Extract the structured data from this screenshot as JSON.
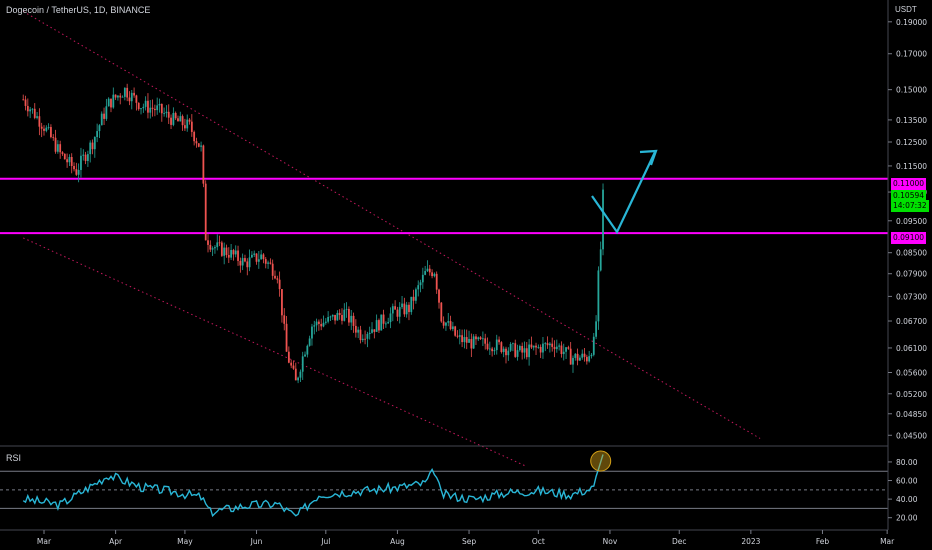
{
  "header": {
    "title": "Dogecoin / TetherUS, 1D, BINANCE",
    "currency": "USDT"
  },
  "rsi_panel": {
    "label": "RSI"
  },
  "price_tags": {
    "resistance_upper": "0.11000",
    "last_price": "0.10594",
    "countdown": "14:07:32",
    "resistance_lower": "0.09100"
  },
  "colors": {
    "background": "#000000",
    "up_candle": "#26a69a",
    "down_candle": "#ef5350",
    "level_line": "#ff00ff",
    "channel_line": "#c2185b",
    "rsi_line": "#29b6d6",
    "arrow": "#29b6d6",
    "last_price_tag": "#00e000",
    "highlight_circle": "#d4a017"
  },
  "chart_data": {
    "type": "candlestick",
    "title": "Dogecoin / TetherUS, 1D, BINANCE",
    "y_scale": "log",
    "ylim": [
      0.0435,
      0.205
    ],
    "y_ticks": [
      "0.19000",
      "0.17000",
      "0.15000",
      "0.13500",
      "0.12500",
      "0.11500",
      "0.10500",
      "0.09500",
      "0.08500",
      "0.07900",
      "0.07300",
      "0.06700",
      "0.06100",
      "0.05600",
      "0.05200",
      "0.04850",
      "0.04500"
    ],
    "x_ticks": [
      "Mar",
      "Apr",
      "May",
      "Jun",
      "Jul",
      "Aug",
      "Sep",
      "Oct",
      "Nov",
      "Dec",
      "2023",
      "Feb",
      "Mar"
    ],
    "horizontal_levels": [
      0.11,
      0.091
    ],
    "anchor_closes": [
      [
        "2022-02-20",
        0.145
      ],
      [
        "2022-03-01",
        0.132
      ],
      [
        "2022-03-08",
        0.12
      ],
      [
        "2022-03-15",
        0.113
      ],
      [
        "2022-03-22",
        0.125
      ],
      [
        "2022-03-29",
        0.143
      ],
      [
        "2022-04-05",
        0.15
      ],
      [
        "2022-04-12",
        0.142
      ],
      [
        "2022-04-19",
        0.14
      ],
      [
        "2022-04-26",
        0.135
      ],
      [
        "2022-05-03",
        0.132
      ],
      [
        "2022-05-08",
        0.122
      ],
      [
        "2022-05-10",
        0.09
      ],
      [
        "2022-05-13",
        0.087
      ],
      [
        "2022-05-20",
        0.085
      ],
      [
        "2022-05-27",
        0.082
      ],
      [
        "2022-06-03",
        0.084
      ],
      [
        "2022-06-10",
        0.079
      ],
      [
        "2022-06-14",
        0.06
      ],
      [
        "2022-06-18",
        0.054
      ],
      [
        "2022-06-25",
        0.066
      ],
      [
        "2022-07-02",
        0.067
      ],
      [
        "2022-07-09",
        0.069
      ],
      [
        "2022-07-16",
        0.064
      ],
      [
        "2022-07-23",
        0.066
      ],
      [
        "2022-07-30",
        0.069
      ],
      [
        "2022-08-06",
        0.07
      ],
      [
        "2022-08-13",
        0.079
      ],
      [
        "2022-08-17",
        0.08
      ],
      [
        "2022-08-20",
        0.068
      ],
      [
        "2022-08-27",
        0.063
      ],
      [
        "2022-09-03",
        0.062
      ],
      [
        "2022-09-10",
        0.062
      ],
      [
        "2022-09-17",
        0.061
      ],
      [
        "2022-09-24",
        0.06
      ],
      [
        "2022-10-01",
        0.061
      ],
      [
        "2022-10-08",
        0.062
      ],
      [
        "2022-10-15",
        0.059
      ],
      [
        "2022-10-22",
        0.059
      ],
      [
        "2022-10-25",
        0.062
      ],
      [
        "2022-10-26",
        0.067
      ],
      [
        "2022-10-27",
        0.078
      ],
      [
        "2022-10-28",
        0.086
      ],
      [
        "2022-10-29",
        0.1059
      ]
    ],
    "rsi": {
      "label": "RSI",
      "ylim": [
        10,
        95
      ],
      "y_ticks": [
        "80.00",
        "60.00",
        "40.00",
        "20.00"
      ],
      "bands": [
        70,
        50,
        30
      ],
      "anchor_values": [
        [
          "2022-02-20",
          40
        ],
        [
          "2022-03-08",
          34
        ],
        [
          "2022-03-22",
          55
        ],
        [
          "2022-03-29",
          66
        ],
        [
          "2022-04-12",
          53
        ],
        [
          "2022-04-26",
          48
        ],
        [
          "2022-05-08",
          42
        ],
        [
          "2022-05-12",
          26
        ],
        [
          "2022-05-27",
          33
        ],
        [
          "2022-06-10",
          35
        ],
        [
          "2022-06-18",
          21
        ],
        [
          "2022-06-28",
          45
        ],
        [
          "2022-07-16",
          49
        ],
        [
          "2022-07-30",
          52
        ],
        [
          "2022-08-13",
          57
        ],
        [
          "2022-08-17",
          71
        ],
        [
          "2022-08-20",
          45
        ],
        [
          "2022-09-03",
          40
        ],
        [
          "2022-09-17",
          47
        ],
        [
          "2022-10-01",
          49
        ],
        [
          "2022-10-15",
          45
        ],
        [
          "2022-10-25",
          52
        ],
        [
          "2022-10-27",
          72
        ],
        [
          "2022-10-29",
          88
        ]
      ]
    }
  }
}
